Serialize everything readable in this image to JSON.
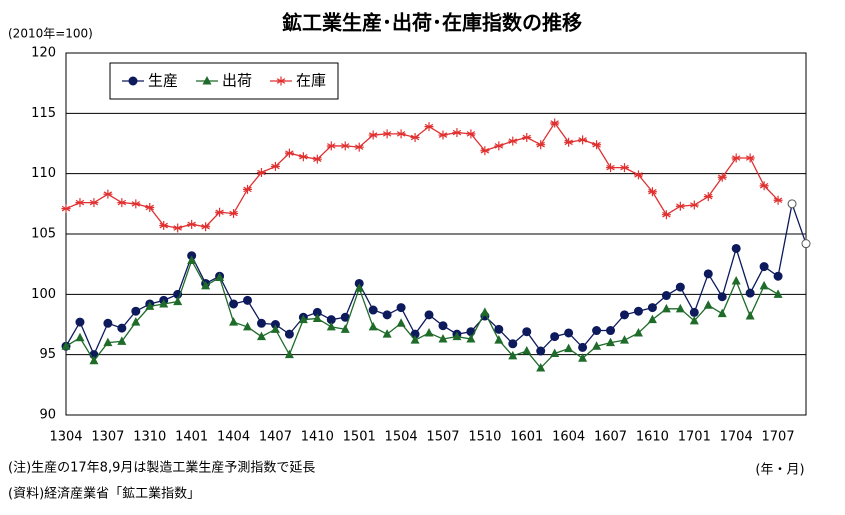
{
  "chart_data": {
    "type": "line",
    "title": "鉱工業生産･出荷･在庫指数の推移",
    "y_unit_label": "(2010年=100)",
    "x_unit_label": "(年・月)",
    "notes": [
      "(注)生産の17年8,9月は製造工業生産予測指数で延長",
      "(資料)経済産業省「鉱工業指数」"
    ],
    "categories": [
      "1304",
      null,
      null,
      "1307",
      null,
      null,
      "1310",
      null,
      null,
      "1401",
      null,
      null,
      "1404",
      null,
      null,
      "1407",
      null,
      null,
      "1410",
      null,
      null,
      "1501",
      null,
      null,
      "1504",
      null,
      null,
      "1507",
      null,
      null,
      "1510",
      null,
      null,
      "1601",
      null,
      null,
      "1604",
      null,
      null,
      "1607",
      null,
      null,
      "1610",
      null,
      null,
      "1701",
      null,
      null,
      "1704",
      null,
      null,
      "1707",
      null,
      null
    ],
    "series": [
      {
        "name": "生産",
        "color": "#0d1a5c",
        "marker": "circle",
        "open_markers": [
          52,
          53
        ],
        "values": [
          95.7,
          97.7,
          95.0,
          97.6,
          97.2,
          98.6,
          99.2,
          99.5,
          100.0,
          103.2,
          100.9,
          101.5,
          99.2,
          99.5,
          97.6,
          97.5,
          96.7,
          98.1,
          98.5,
          97.9,
          98.1,
          100.9,
          98.7,
          98.3,
          98.9,
          96.7,
          98.3,
          97.4,
          96.7,
          96.9,
          98.2,
          97.1,
          95.9,
          96.9,
          95.3,
          96.5,
          96.8,
          95.6,
          97.0,
          97.0,
          98.3,
          98.6,
          98.9,
          99.9,
          100.6,
          98.5,
          101.7,
          99.8,
          103.8,
          100.1,
          102.3,
          101.5,
          107.5,
          104.2
        ]
      },
      {
        "name": "出荷",
        "color": "#1f6b2a",
        "marker": "triangle",
        "values": [
          95.7,
          96.4,
          94.5,
          96.0,
          96.1,
          97.7,
          99.0,
          99.2,
          99.4,
          102.8,
          100.7,
          101.4,
          97.7,
          97.3,
          96.5,
          97.1,
          95.0,
          97.9,
          98.0,
          97.3,
          97.1,
          100.5,
          97.3,
          96.7,
          97.6,
          96.2,
          96.8,
          96.3,
          96.5,
          96.3,
          98.5,
          96.2,
          94.9,
          95.3,
          93.9,
          95.1,
          95.5,
          94.7,
          95.7,
          96.0,
          96.2,
          96.8,
          97.9,
          98.8,
          98.8,
          97.8,
          99.1,
          98.4,
          101.1,
          98.2,
          100.7,
          100.0,
          null,
          null
        ]
      },
      {
        "name": "在庫",
        "color": "#e03030",
        "marker": "star",
        "values": [
          107.1,
          107.6,
          107.6,
          108.3,
          107.6,
          107.5,
          107.2,
          105.7,
          105.5,
          105.8,
          105.6,
          106.8,
          106.7,
          108.7,
          110.1,
          110.6,
          111.7,
          111.4,
          111.2,
          112.3,
          112.3,
          112.2,
          113.2,
          113.3,
          113.3,
          113.0,
          113.9,
          113.2,
          113.4,
          113.3,
          111.9,
          112.3,
          112.7,
          113.0,
          112.4,
          114.2,
          112.6,
          112.8,
          112.4,
          110.5,
          110.5,
          109.9,
          108.5,
          106.6,
          107.3,
          107.4,
          108.1,
          109.7,
          111.3,
          111.3,
          109.0,
          107.8,
          null,
          null
        ]
      }
    ],
    "ylim": [
      90,
      120
    ],
    "yticks": [
      90,
      95,
      100,
      105,
      110,
      115,
      120
    ],
    "grid": true,
    "legend": "top-left"
  }
}
